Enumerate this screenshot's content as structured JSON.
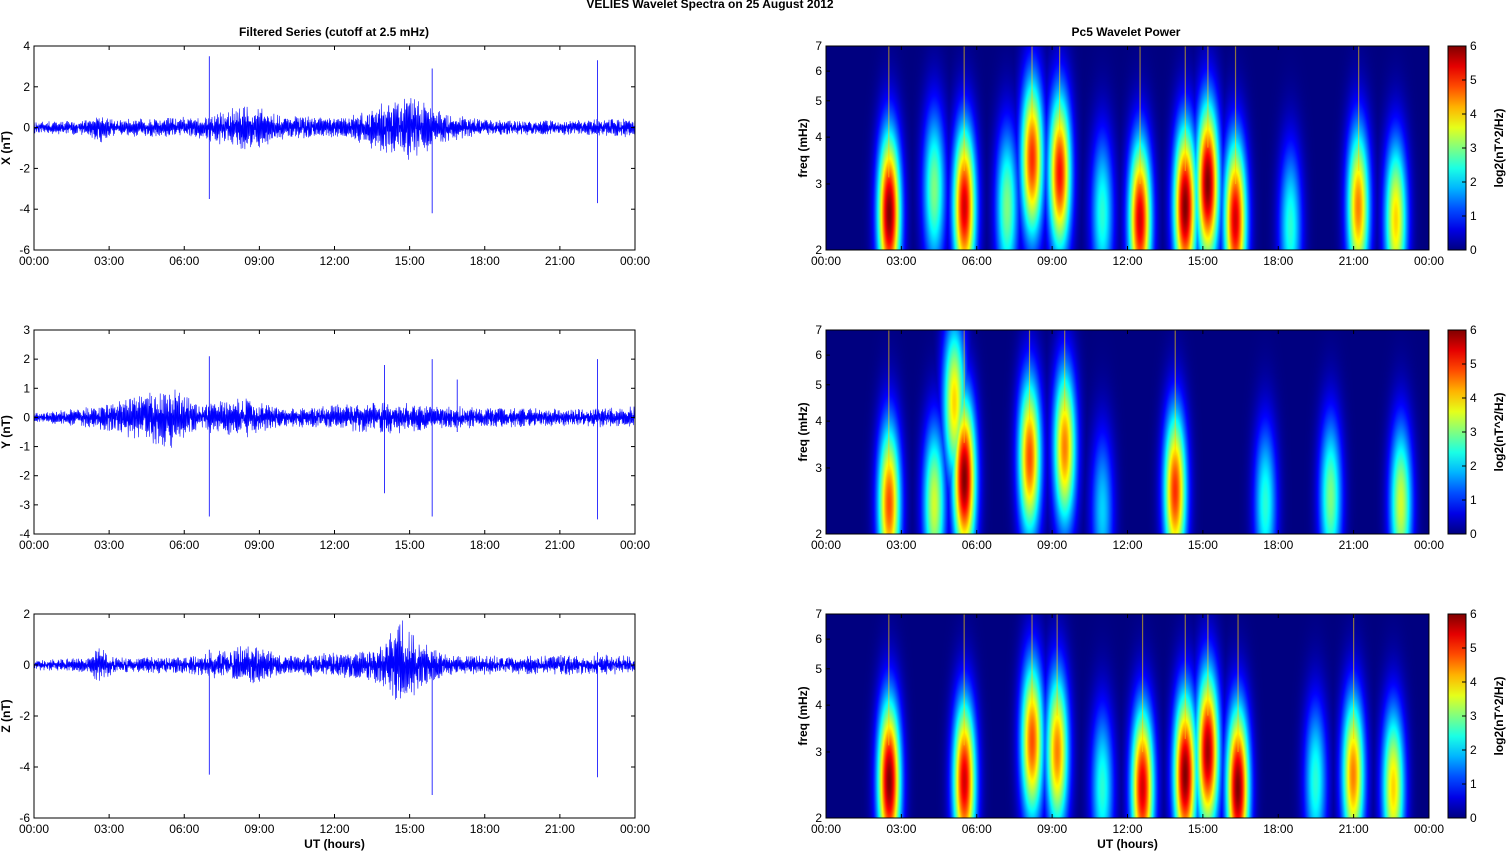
{
  "figure": {
    "title": "VELIES Wavelet Spectra on 25 August    2012",
    "left_title": "Filtered Series (cutoff at 2.5 mHz)",
    "right_title": "Pc5 Wavelet Power"
  },
  "chart_data": [
    {
      "type": "line",
      "component": "X",
      "ylabel": "X (nT)",
      "xlabel": "",
      "xlim": [
        0,
        24
      ],
      "ylim": [
        -6,
        4
      ],
      "xticks": [
        "00:00",
        "03:00",
        "06:00",
        "09:00",
        "12:00",
        "15:00",
        "18:00",
        "21:00",
        "00:00"
      ],
      "yticks": [
        "-6",
        "-4",
        "-2",
        "0",
        "2",
        "4"
      ],
      "series": [
        {
          "color": "#0000ff",
          "envelope": [
            {
              "t": 0,
              "amp": 0.3
            },
            {
              "t": 2.2,
              "amp": 0.4
            },
            {
              "t": 2.6,
              "amp": 0.8
            },
            {
              "t": 3.2,
              "amp": 0.4
            },
            {
              "t": 6.8,
              "amp": 0.6
            },
            {
              "t": 8.5,
              "amp": 1.2
            },
            {
              "t": 10,
              "amp": 0.6
            },
            {
              "t": 12.5,
              "amp": 0.5
            },
            {
              "t": 14,
              "amp": 1.4
            },
            {
              "t": 15,
              "amp": 1.6
            },
            {
              "t": 16.5,
              "amp": 0.7
            },
            {
              "t": 18,
              "amp": 0.4
            },
            {
              "t": 22,
              "amp": 0.4
            },
            {
              "t": 24,
              "amp": 0.5
            }
          ],
          "spikes": [
            {
              "t": 7.0,
              "max": 3.5,
              "min": -3.5
            },
            {
              "t": 15.9,
              "max": 2.9,
              "min": -4.2
            },
            {
              "t": 22.5,
              "max": 3.3,
              "min": -3.7
            }
          ]
        }
      ]
    },
    {
      "type": "line",
      "component": "Y",
      "ylabel": "Y (nT)",
      "xlabel": "",
      "xlim": [
        0,
        24
      ],
      "ylim": [
        -4,
        3
      ],
      "xticks": [
        "00:00",
        "03:00",
        "06:00",
        "09:00",
        "12:00",
        "15:00",
        "18:00",
        "21:00",
        "00:00"
      ],
      "yticks": [
        "-4",
        "-3",
        "-2",
        "-1",
        "0",
        "1",
        "2",
        "3"
      ],
      "series": [
        {
          "color": "#0000ff",
          "envelope": [
            {
              "t": 0,
              "amp": 0.15
            },
            {
              "t": 2.5,
              "amp": 0.4
            },
            {
              "t": 5.5,
              "amp": 1.1
            },
            {
              "t": 6.5,
              "amp": 0.5
            },
            {
              "t": 8.5,
              "amp": 0.7
            },
            {
              "t": 10,
              "amp": 0.3
            },
            {
              "t": 14,
              "amp": 0.6
            },
            {
              "t": 16.5,
              "amp": 0.4
            },
            {
              "t": 21.5,
              "amp": 0.3
            },
            {
              "t": 24,
              "amp": 0.4
            }
          ],
          "spikes": [
            {
              "t": 7.0,
              "max": 2.1,
              "min": -3.4
            },
            {
              "t": 14.0,
              "max": 1.8,
              "min": -2.6
            },
            {
              "t": 15.9,
              "max": 2.0,
              "min": -3.4
            },
            {
              "t": 22.5,
              "max": 2.0,
              "min": -3.5
            },
            {
              "t": 16.9,
              "max": 1.3,
              "min": -0.5
            }
          ]
        }
      ]
    },
    {
      "type": "line",
      "component": "Z",
      "ylabel": "Z (nT)",
      "xlabel": "UT (hours)",
      "xlim": [
        0,
        24
      ],
      "ylim": [
        -6,
        2
      ],
      "xticks": [
        "00:00",
        "03:00",
        "06:00",
        "09:00",
        "12:00",
        "15:00",
        "18:00",
        "21:00",
        "00:00"
      ],
      "yticks": [
        "-6",
        "-4",
        "-2",
        "0",
        "2"
      ],
      "series": [
        {
          "color": "#0000ff",
          "envelope": [
            {
              "t": 0,
              "amp": 0.2
            },
            {
              "t": 2.2,
              "amp": 0.3
            },
            {
              "t": 2.6,
              "amp": 0.8
            },
            {
              "t": 3.2,
              "amp": 0.3
            },
            {
              "t": 6.5,
              "amp": 0.4
            },
            {
              "t": 8.5,
              "amp": 0.8
            },
            {
              "t": 10,
              "amp": 0.4
            },
            {
              "t": 13.5,
              "amp": 0.6
            },
            {
              "t": 14.7,
              "amp": 1.8
            },
            {
              "t": 15.5,
              "amp": 0.9
            },
            {
              "t": 16.5,
              "amp": 0.4
            },
            {
              "t": 24,
              "amp": 0.4
            }
          ],
          "spikes": [
            {
              "t": 7.0,
              "max": 0.6,
              "min": -4.3
            },
            {
              "t": 15.9,
              "max": 0.5,
              "min": -5.1
            },
            {
              "t": 22.5,
              "max": 0.5,
              "min": -4.4
            }
          ]
        }
      ]
    },
    {
      "type": "heatmap",
      "component": "X",
      "ylabel": "freq (mHz)",
      "xlabel": "",
      "xlim": [
        0,
        24
      ],
      "ylim": [
        2,
        7
      ],
      "yscale": "log",
      "xticks": [
        "00:00",
        "03:00",
        "06:00",
        "09:00",
        "12:00",
        "15:00",
        "18:00",
        "21:00",
        "00:00"
      ],
      "yticks": [
        "2",
        "3",
        "4",
        "5",
        "6",
        "7"
      ],
      "colorbar": {
        "label": "log2(nT^2/Hz)",
        "range": [
          0,
          6
        ],
        "ticks": [
          "0",
          "1",
          "2",
          "3",
          "4",
          "5",
          "6"
        ]
      },
      "blobs": [
        {
          "t": 2.5,
          "f": 2.5,
          "p": 6.0
        },
        {
          "t": 5.5,
          "f": 2.6,
          "p": 5.5
        },
        {
          "t": 8.2,
          "f": 3.5,
          "p": 5.0
        },
        {
          "t": 9.3,
          "f": 3.2,
          "p": 5.2
        },
        {
          "t": 12.5,
          "f": 2.4,
          "p": 5.5
        },
        {
          "t": 14.3,
          "f": 2.6,
          "p": 6.0
        },
        {
          "t": 15.2,
          "f": 3.0,
          "p": 6.0
        },
        {
          "t": 16.3,
          "f": 2.4,
          "p": 5.5
        },
        {
          "t": 21.2,
          "f": 2.6,
          "p": 4.5
        },
        {
          "t": 22.7,
          "f": 2.4,
          "p": 4.0
        },
        {
          "t": 4.3,
          "f": 2.9,
          "p": 3.0
        },
        {
          "t": 7.2,
          "f": 2.6,
          "p": 3.0
        },
        {
          "t": 11.0,
          "f": 2.5,
          "p": 2.5
        },
        {
          "t": 18.5,
          "f": 2.3,
          "p": 2.5
        }
      ]
    },
    {
      "type": "heatmap",
      "component": "Y",
      "ylabel": "freq (mHz)",
      "xlabel": "",
      "xlim": [
        0,
        24
      ],
      "ylim": [
        2,
        7
      ],
      "yscale": "log",
      "xticks": [
        "00:00",
        "03:00",
        "06:00",
        "09:00",
        "12:00",
        "15:00",
        "18:00",
        "21:00",
        "00:00"
      ],
      "yticks": [
        "2",
        "3",
        "4",
        "5",
        "6",
        "7"
      ],
      "colorbar": {
        "label": "log2(nT^2/Hz)",
        "range": [
          0,
          6
        ],
        "ticks": [
          "0",
          "1",
          "2",
          "3",
          "4",
          "5",
          "6"
        ]
      },
      "blobs": [
        {
          "t": 2.5,
          "f": 2.4,
          "p": 4.8
        },
        {
          "t": 4.3,
          "f": 2.4,
          "p": 3.5
        },
        {
          "t": 5.5,
          "f": 2.8,
          "p": 6.0
        },
        {
          "t": 5.1,
          "f": 4.5,
          "p": 4.0
        },
        {
          "t": 8.1,
          "f": 3.2,
          "p": 4.8
        },
        {
          "t": 9.5,
          "f": 3.4,
          "p": 4.5
        },
        {
          "t": 13.9,
          "f": 2.6,
          "p": 5.0
        },
        {
          "t": 11.0,
          "f": 2.3,
          "p": 2.0
        },
        {
          "t": 17.5,
          "f": 2.4,
          "p": 2.5
        },
        {
          "t": 20.1,
          "f": 2.5,
          "p": 3.0
        },
        {
          "t": 22.9,
          "f": 2.4,
          "p": 3.5
        }
      ]
    },
    {
      "type": "heatmap",
      "component": "Z",
      "ylabel": "freq (mHz)",
      "xlabel": "UT (hours)",
      "xlim": [
        0,
        24
      ],
      "ylim": [
        2,
        7
      ],
      "yscale": "log",
      "xticks": [
        "00:00",
        "03:00",
        "06:00",
        "09:00",
        "12:00",
        "15:00",
        "18:00",
        "21:00",
        "00:00"
      ],
      "yticks": [
        "2",
        "3",
        "4",
        "5",
        "6",
        "7"
      ],
      "colorbar": {
        "label": "log2(nT^2/Hz)",
        "range": [
          0,
          6
        ],
        "ticks": [
          "0",
          "1",
          "2",
          "3",
          "4",
          "5",
          "6"
        ]
      },
      "blobs": [
        {
          "t": 2.5,
          "f": 2.5,
          "p": 6.0
        },
        {
          "t": 5.5,
          "f": 2.5,
          "p": 5.5
        },
        {
          "t": 8.2,
          "f": 3.2,
          "p": 4.8
        },
        {
          "t": 9.2,
          "f": 3.0,
          "p": 4.5
        },
        {
          "t": 12.6,
          "f": 2.4,
          "p": 5.5
        },
        {
          "t": 14.3,
          "f": 2.6,
          "p": 6.0
        },
        {
          "t": 15.2,
          "f": 3.0,
          "p": 5.8
        },
        {
          "t": 16.4,
          "f": 2.4,
          "p": 6.0
        },
        {
          "t": 21.0,
          "f": 2.6,
          "p": 4.5
        },
        {
          "t": 22.6,
          "f": 2.4,
          "p": 4.0
        },
        {
          "t": 11.0,
          "f": 2.4,
          "p": 2.5
        },
        {
          "t": 19.5,
          "f": 2.5,
          "p": 2.5
        }
      ]
    }
  ]
}
